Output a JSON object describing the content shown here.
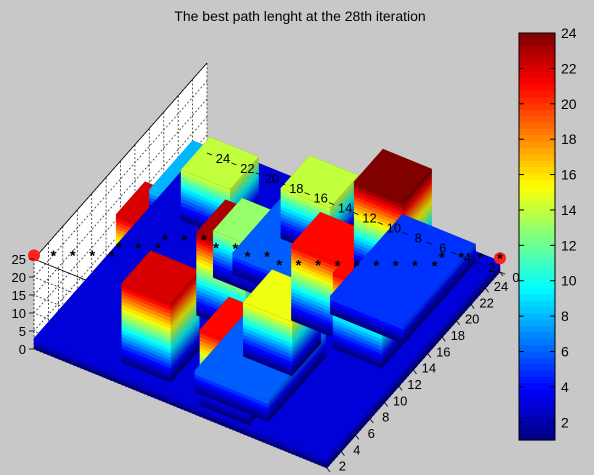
{
  "chart_data": {
    "type": "bar3d",
    "title": "The best path lenght at the 28th iteration",
    "xlabel": "",
    "ylabel": "",
    "zlabel": "",
    "x_ticks": [
      "0",
      "2",
      "4",
      "6",
      "8",
      "10",
      "12",
      "14",
      "16",
      "18",
      "20",
      "22",
      "24"
    ],
    "y_ticks": [
      "0",
      "2",
      "4",
      "6",
      "8",
      "10",
      "12",
      "14",
      "16",
      "18",
      "20",
      "22",
      "24"
    ],
    "z_ticks": [
      "0",
      "5",
      "10",
      "15",
      "20",
      "25"
    ],
    "zlim": [
      0,
      25
    ],
    "colorbar": {
      "ticks": [
        "2",
        "4",
        "6",
        "8",
        "10",
        "12",
        "14",
        "16",
        "18",
        "20",
        "22",
        "24"
      ],
      "range": [
        1,
        24
      ],
      "colormap": "jet"
    },
    "grid": true,
    "base_height": 3,
    "terrain_blocks": [
      {
        "x0": 0,
        "x1": 24,
        "y0": 0,
        "y1": 24,
        "h": 3
      },
      {
        "x0": 14,
        "x1": 24,
        "y0": 2,
        "y1": 8,
        "h": 5
      },
      {
        "x0": 2,
        "x1": 10,
        "y0": 6,
        "y1": 12,
        "h": 6
      },
      {
        "x0": 14,
        "x1": 22,
        "y0": 10,
        "y1": 16,
        "h": 6
      },
      {
        "x0": 6,
        "x1": 12,
        "y0": 16,
        "y1": 22,
        "h": 7
      },
      {
        "x0": 16,
        "x1": 22,
        "y0": 18,
        "y1": 24,
        "h": 8
      },
      {
        "x0": 2,
        "x1": 8,
        "y0": 14,
        "y1": 18,
        "h": 7
      }
    ],
    "towers": [
      {
        "x": 19,
        "y": 20,
        "h": 14
      },
      {
        "x": 10,
        "y": 20,
        "h": 22
      },
      {
        "x": 4,
        "y": 16,
        "h": 22
      },
      {
        "x": 21,
        "y": 13,
        "h": 14
      },
      {
        "x": 15,
        "y": 15,
        "h": 13
      },
      {
        "x": 11,
        "y": 14,
        "h": 23
      },
      {
        "x": 3,
        "y": 9,
        "h": 21
      },
      {
        "x": 9,
        "y": 9,
        "h": 15
      },
      {
        "x": 14,
        "y": 8,
        "h": 21
      },
      {
        "x": 21,
        "y": 7,
        "h": 24
      },
      {
        "x": 13,
        "y": 4,
        "h": 21
      }
    ],
    "path": {
      "start": {
        "x": 0,
        "y": 24
      },
      "end": {
        "x": 24,
        "y": 0
      },
      "points": [
        [
          1,
          23
        ],
        [
          2,
          22
        ],
        [
          3,
          21
        ],
        [
          4,
          20
        ],
        [
          5,
          20
        ],
        [
          6,
          19
        ],
        [
          7,
          18
        ],
        [
          8,
          18
        ],
        [
          9,
          17
        ],
        [
          10,
          16
        ],
        [
          10,
          15
        ],
        [
          11,
          14
        ],
        [
          11,
          13
        ],
        [
          12,
          12
        ],
        [
          12,
          11
        ],
        [
          13,
          10
        ],
        [
          14,
          9
        ],
        [
          15,
          8
        ],
        [
          16,
          7
        ],
        [
          17,
          6
        ],
        [
          18,
          5
        ],
        [
          19,
          4
        ],
        [
          20,
          3
        ],
        [
          21,
          3
        ],
        [
          22,
          2
        ],
        [
          23,
          1
        ]
      ],
      "marker": "*",
      "endpoint_color": "#ff2020"
    }
  }
}
